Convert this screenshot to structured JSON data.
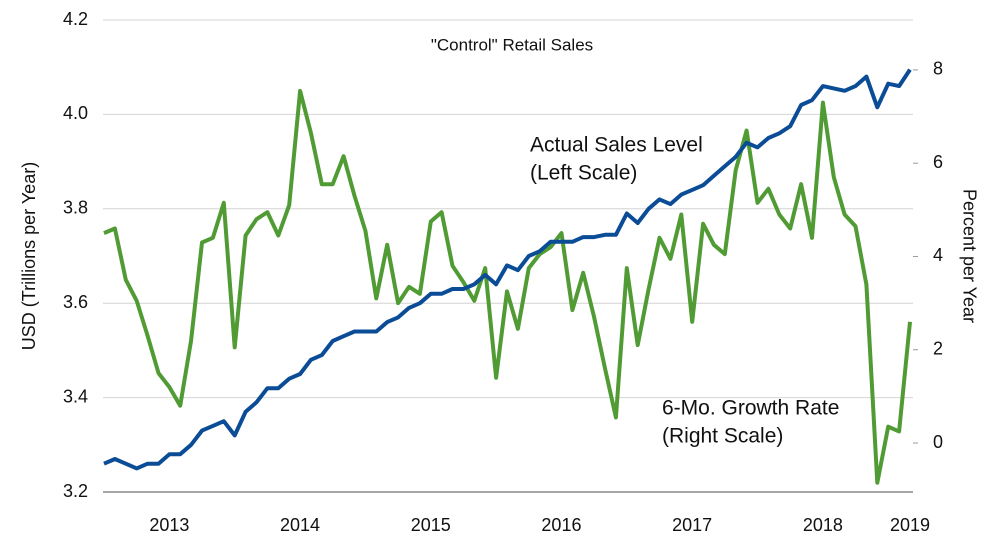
{
  "chart_data": {
    "type": "line",
    "title": "\"Control\" Retail Sales",
    "y_label": "USD (Trillions per Year)",
    "y2_label": "Percent per Year",
    "categories": [
      null,
      null,
      null,
      null,
      null,
      null,
      "2013",
      null,
      null,
      null,
      null,
      null,
      null,
      null,
      null,
      null,
      null,
      null,
      "2014",
      null,
      null,
      null,
      null,
      null,
      null,
      null,
      null,
      null,
      null,
      null,
      "2015",
      null,
      null,
      null,
      null,
      null,
      null,
      null,
      null,
      null,
      null,
      null,
      "2016",
      null,
      null,
      null,
      null,
      null,
      null,
      null,
      null,
      null,
      null,
      null,
      "2017",
      null,
      null,
      null,
      null,
      null,
      null,
      null,
      null,
      null,
      null,
      null,
      "2018",
      null,
      null,
      null,
      null,
      null,
      null,
      null,
      "2019"
    ],
    "series": [
      {
        "color": "#0b4c97",
        "axis": "y",
        "values": [
          3.26,
          3.27,
          3.26,
          3.25,
          3.26,
          3.26,
          3.28,
          3.28,
          3.3,
          3.33,
          3.34,
          3.35,
          3.32,
          3.37,
          3.39,
          3.42,
          3.42,
          3.44,
          3.45,
          3.48,
          3.49,
          3.52,
          3.53,
          3.54,
          3.54,
          3.54,
          3.56,
          3.57,
          3.59,
          3.6,
          3.62,
          3.62,
          3.63,
          3.63,
          3.64,
          3.66,
          3.64,
          3.68,
          3.67,
          3.7,
          3.71,
          3.73,
          3.73,
          3.73,
          3.74,
          3.74,
          3.745,
          3.745,
          3.79,
          3.77,
          3.8,
          3.82,
          3.81,
          3.83,
          3.84,
          3.85,
          3.87,
          3.89,
          3.91,
          3.94,
          3.93,
          3.95,
          3.96,
          3.975,
          4.02,
          4.03,
          4.06,
          4.055,
          4.05,
          4.06,
          4.08,
          4.015,
          4.065,
          4.06,
          4.095
        ]
      },
      {
        "color": "#519b35",
        "axis": "y2",
        "values": [
          4.5,
          4.6,
          3.5,
          3.05,
          2.3,
          1.5,
          1.2,
          0.8,
          2.2,
          4.3,
          4.4,
          5.15,
          2.05,
          4.45,
          4.8,
          4.95,
          4.45,
          5.1,
          7.55,
          6.65,
          5.55,
          5.55,
          6.15,
          5.3,
          4.55,
          3.1,
          4.25,
          3.0,
          3.35,
          3.2,
          4.75,
          4.95,
          3.8,
          3.45,
          3.05,
          3.75,
          1.4,
          3.25,
          2.45,
          3.75,
          4.05,
          4.2,
          4.5,
          2.85,
          3.65,
          2.7,
          1.6,
          0.55,
          3.75,
          2.1,
          3.3,
          4.4,
          3.95,
          4.9,
          2.6,
          4.7,
          4.25,
          4.05,
          5.85,
          6.7,
          5.15,
          5.45,
          4.9,
          4.6,
          5.55,
          4.4,
          7.3,
          5.7,
          4.9,
          4.65,
          3.4,
          -0.85,
          0.35,
          0.25,
          2.6
        ]
      }
    ],
    "annotations": [
      {
        "lines": [
          "Actual Sales Level",
          "(Left Scale)"
        ],
        "color": "#0b4c97"
      },
      {
        "lines": [
          "6-Mo. Growth Rate",
          "(Right Scale)"
        ],
        "color": "#519b35"
      }
    ],
    "ylim": [
      3.2,
      4.2
    ],
    "yticks": [
      3.2,
      3.4,
      3.6,
      3.8,
      {
        "value": 4,
        "label": "4.0"
      },
      4.2
    ],
    "y2lim": [
      -1.05,
      9.07
    ],
    "y2ticks": [
      0,
      2,
      4,
      6,
      8
    ],
    "grid": true
  }
}
